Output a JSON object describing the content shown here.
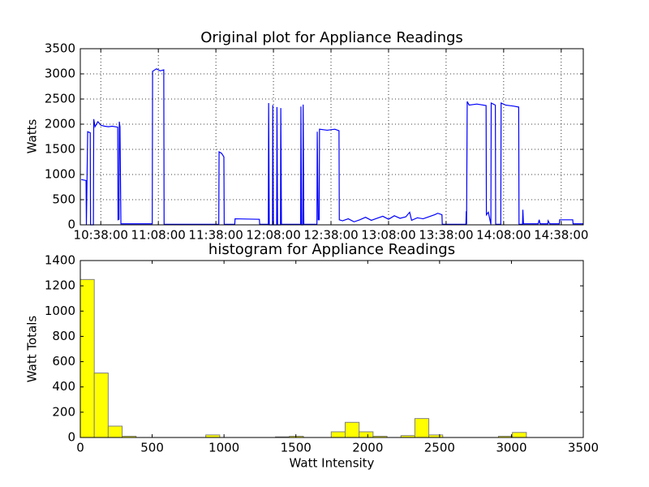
{
  "chart_data": [
    {
      "type": "line",
      "title": "Original plot for Appliance Readings",
      "ylabel": "Watts",
      "color": "#0000ff",
      "grid": true,
      "xlim": [
        "10:27:20",
        "14:49:30"
      ],
      "xticks": [
        "10:38:00",
        "11:08:00",
        "11:38:00",
        "12:08:00",
        "12:38:00",
        "13:08:00",
        "13:38:00",
        "14:08:00",
        "14:38:00"
      ],
      "ylim": [
        0,
        3500
      ],
      "yticks": [
        0,
        500,
        1000,
        1500,
        2000,
        2500,
        3000,
        3500
      ],
      "x": [
        "10:27:50",
        "10:30:20",
        "10:30:30",
        "10:31:10",
        "10:32:30",
        "10:32:40",
        "10:34:10",
        "10:34:20",
        "10:35:00",
        "10:36:30",
        "10:38:00",
        "10:40:00",
        "10:42:00",
        "10:44:00",
        "10:46:50",
        "10:47:00",
        "10:47:30",
        "10:47:40",
        "10:48:00",
        "10:48:30",
        "11:04:50",
        "11:05:00",
        "11:07:00",
        "11:09:00",
        "11:10:50",
        "11:11:00",
        "11:39:30",
        "11:39:40",
        "11:41:00",
        "11:42:10",
        "11:42:20",
        "11:47:50",
        "11:48:00",
        "12:00:40",
        "12:00:50",
        "12:05:20",
        "12:05:30",
        "12:05:50",
        "12:07:30",
        "12:07:40",
        "12:08:00",
        "12:09:40",
        "12:09:50",
        "12:10:10",
        "12:11:40",
        "12:11:50",
        "12:12:10",
        "12:22:10",
        "12:22:20",
        "12:22:40",
        "12:23:20",
        "12:23:30",
        "12:23:50",
        "12:30:40",
        "12:30:50",
        "12:31:20",
        "12:31:50",
        "12:32:00",
        "12:36:00",
        "12:40:00",
        "12:42:10",
        "12:42:20",
        "12:44:00",
        "12:47:00",
        "12:50:00",
        "12:53:00",
        "12:56:00",
        "12:59:00",
        "13:02:00",
        "13:05:00",
        "13:08:00",
        "13:11:00",
        "13:14:00",
        "13:17:00",
        "13:19:00",
        "13:20:00",
        "13:23:00",
        "13:26:00",
        "13:29:00",
        "13:32:00",
        "13:33:40",
        "13:35:50",
        "13:36:00",
        "13:48:20",
        "13:48:30",
        "13:48:40",
        "13:49:00",
        "13:50:00",
        "13:54:00",
        "13:58:50",
        "13:59:00",
        "14:00:00",
        "14:01:20",
        "14:01:30",
        "14:03:40",
        "14:03:50",
        "14:06:30",
        "14:06:40",
        "14:09:00",
        "14:13:00",
        "14:15:50",
        "14:16:00",
        "14:17:50",
        "14:18:00",
        "14:18:20",
        "14:26:00",
        "14:26:30",
        "14:27:00",
        "14:31:00",
        "14:31:10",
        "14:32:00",
        "14:37:00",
        "14:37:10",
        "14:44:00",
        "14:44:10",
        "14:49:20"
      ],
      "values": [
        900,
        880,
        0,
        1850,
        1830,
        0,
        0,
        2100,
        1950,
        2050,
        1980,
        1960,
        1950,
        1960,
        1940,
        100,
        110,
        2050,
        1950,
        20,
        20,
        3050,
        3100,
        3060,
        3080,
        10,
        10,
        1450,
        1420,
        1350,
        10,
        10,
        120,
        110,
        10,
        10,
        2420,
        0,
        0,
        2380,
        0,
        0,
        2340,
        0,
        0,
        2320,
        10,
        10,
        2350,
        0,
        0,
        2390,
        10,
        10,
        1850,
        100,
        100,
        1900,
        1880,
        1900,
        1870,
        100,
        80,
        120,
        60,
        100,
        150,
        90,
        130,
        170,
        110,
        180,
        130,
        160,
        250,
        90,
        140,
        120,
        160,
        200,
        230,
        200,
        10,
        10,
        270,
        10,
        2450,
        2380,
        2400,
        2370,
        200,
        250,
        10,
        2420,
        2380,
        10,
        10,
        2420,
        2380,
        2360,
        2340,
        10,
        10,
        300,
        20,
        20,
        100,
        20,
        20,
        80,
        20,
        20,
        100,
        100,
        20,
        20
      ]
    },
    {
      "type": "histogram",
      "title": "histogram for Appliance Readings",
      "xlabel": "Watt Intensity",
      "ylabel": "Watt Totals",
      "color": "#ffff00",
      "edgecolor": "#808080",
      "xlim": [
        0,
        3500
      ],
      "xticks": [
        0,
        500,
        1000,
        1500,
        2000,
        2500,
        3000,
        3500
      ],
      "ylim": [
        0,
        1400
      ],
      "yticks": [
        0,
        200,
        400,
        600,
        800,
        1000,
        1200,
        1400
      ],
      "bins": [
        0,
        97,
        194,
        291,
        388,
        485,
        582,
        679,
        776,
        873,
        970,
        1067,
        1164,
        1261,
        1358,
        1455,
        1552,
        1649,
        1746,
        1843,
        1940,
        2037,
        2134,
        2231,
        2328,
        2425,
        2522,
        2619,
        2716,
        2813,
        2910,
        3007,
        3104
      ],
      "values": [
        1250,
        510,
        90,
        10,
        0,
        0,
        0,
        0,
        0,
        20,
        0,
        0,
        0,
        0,
        5,
        10,
        0,
        0,
        45,
        120,
        45,
        10,
        0,
        15,
        150,
        20,
        0,
        0,
        0,
        0,
        10,
        40
      ]
    }
  ]
}
